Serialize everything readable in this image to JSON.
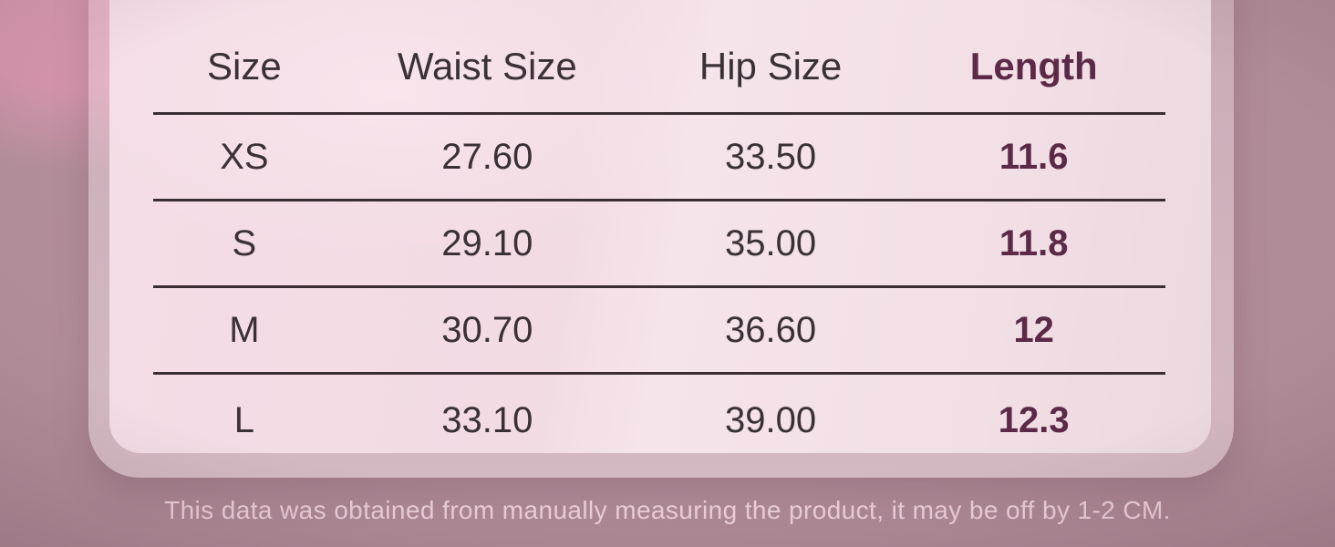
{
  "chart_data": {
    "type": "table",
    "columns": [
      "Size",
      "Waist Size",
      "Hip Size",
      "Length"
    ],
    "rows": [
      {
        "size": "XS",
        "waist": "27.60",
        "hip": "33.50",
        "length": "11.6"
      },
      {
        "size": "S",
        "waist": "29.10",
        "hip": "35.00",
        "length": "11.8"
      },
      {
        "size": "M",
        "waist": "30.70",
        "hip": "36.60",
        "length": "12"
      },
      {
        "size": "L",
        "waist": "33.10",
        "hip": "39.00",
        "length": "12.3"
      }
    ],
    "layout_hints": {
      "grid": "horizontal dividers only",
      "length_column_emphasis": "bold maroon"
    }
  },
  "footer": {
    "note": "This data was obtained from manually measuring the product, it may be off by 1-2 CM."
  },
  "colors": {
    "background_mauve": "#ad8a96",
    "background_pink_glow": "#d394ab",
    "panel_frame": "#c9a8b4",
    "panel": "#f3dce4",
    "divider_line": "#3b2d34",
    "text_dark": "#3a3136",
    "accent_maroon": "#5c2a47",
    "top_bar": "#452f3e",
    "footer_text": "#e9ced8"
  }
}
